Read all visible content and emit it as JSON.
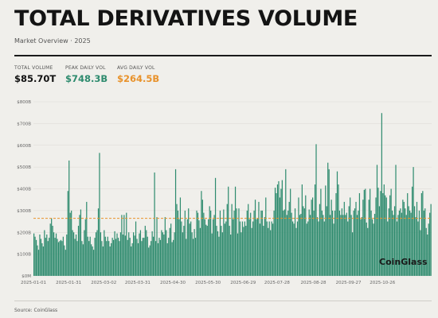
{
  "header": {
    "title": "TOTAL DERIVATIVES VOLUME",
    "subtitle": "Market Overview · 2025"
  },
  "stats": [
    {
      "label": "TOTAL VOLUME",
      "value": "$85.70T",
      "color": "#111111"
    },
    {
      "label": "PEAK DAILY VOL",
      "value": "$748.3B",
      "color": "#2e8b6e"
    },
    {
      "label": "AVG DAILY VOL",
      "value": "$264.5B",
      "color": "#e8922b"
    }
  ],
  "watermark": "CoinGlass",
  "source": "Source: CoinGlass",
  "colors": {
    "bar": "#2e8b6e",
    "average_line": "#e8922b",
    "grid": "#dcdad5",
    "axis_text": "#666666"
  },
  "chart_data": {
    "type": "bar",
    "title": "TOTAL DERIVATIVES VOLUME",
    "xlabel": "",
    "ylabel": "",
    "ylim": [
      0,
      800
    ],
    "y_ticks": [
      0,
      100,
      200,
      300,
      400,
      500,
      600,
      700,
      800
    ],
    "y_tick_labels": [
      "$0M",
      "$100B",
      "$200B",
      "$300B",
      "$400B",
      "$500B",
      "$600B",
      "$700B",
      "$800B"
    ],
    "x_tick_labels": [
      "2025-01-01",
      "2025-01-31",
      "2025-03-02",
      "2025-03-31",
      "2025-04-30",
      "2025-05-30",
      "2025-06-29",
      "2025-07-28",
      "2025-08-28",
      "2025-09-27",
      "2025-10-26"
    ],
    "x_tick_day_index": [
      0,
      30,
      60,
      89,
      119,
      149,
      179,
      208,
      239,
      269,
      298
    ],
    "average_line_value": 264.5,
    "grid": true,
    "unit": "B USD",
    "values": [
      195,
      180,
      165,
      140,
      120,
      190,
      170,
      150,
      135,
      210,
      175,
      190,
      160,
      175,
      240,
      265,
      230,
      200,
      175,
      195,
      170,
      155,
      160,
      165,
      160,
      180,
      140,
      120,
      190,
      390,
      530,
      290,
      300,
      210,
      200,
      170,
      190,
      160,
      230,
      280,
      305,
      160,
      145,
      210,
      260,
      340,
      180,
      160,
      180,
      145,
      135,
      120,
      175,
      200,
      210,
      310,
      565,
      200,
      160,
      135,
      210,
      180,
      160,
      180,
      160,
      135,
      150,
      175,
      165,
      205,
      170,
      195,
      175,
      160,
      200,
      280,
      190,
      280,
      185,
      290,
      165,
      200,
      175,
      135,
      150,
      200,
      185,
      250,
      170,
      150,
      195,
      210,
      160,
      175,
      175,
      230,
      210,
      180,
      130,
      140,
      160,
      205,
      180,
      475,
      160,
      270,
      150,
      175,
      165,
      210,
      200,
      190,
      270,
      210,
      150,
      175,
      220,
      240,
      155,
      165,
      200,
      490,
      330,
      300,
      260,
      360,
      250,
      200,
      230,
      300,
      170,
      260,
      310,
      240,
      250,
      200,
      170,
      215,
      175,
      300,
      290,
      255,
      220,
      390,
      350,
      290,
      260,
      235,
      230,
      260,
      320,
      300,
      195,
      260,
      280,
      450,
      230,
      205,
      180,
      300,
      230,
      200,
      305,
      240,
      250,
      330,
      410,
      230,
      190,
      330,
      260,
      300,
      410,
      310,
      195,
      310,
      250,
      200,
      250,
      225,
      250,
      230,
      300,
      330,
      260,
      290,
      220,
      250,
      300,
      350,
      260,
      265,
      340,
      240,
      300,
      300,
      230,
      270,
      360,
      250,
      220,
      250,
      210,
      250,
      240,
      300,
      405,
      380,
      420,
      435,
      360,
      400,
      440,
      300,
      305,
      490,
      280,
      300,
      340,
      400,
      290,
      250,
      240,
      310,
      220,
      250,
      360,
      280,
      285,
      420,
      320,
      310,
      370,
      240,
      250,
      305,
      280,
      350,
      360,
      300,
      420,
      605,
      270,
      250,
      330,
      400,
      300,
      280,
      250,
      415,
      320,
      520,
      490,
      280,
      350,
      300,
      240,
      300,
      380,
      480,
      420,
      300,
      280,
      310,
      280,
      340,
      280,
      290,
      250,
      320,
      360,
      280,
      200,
      300,
      310,
      340,
      280,
      300,
      380,
      260,
      270,
      350,
      395,
      400,
      245,
      220,
      350,
      400,
      300,
      260,
      240,
      285,
      360,
      510,
      405,
      320,
      390,
      748,
      380,
      420,
      370,
      360,
      250,
      310,
      370,
      400,
      300,
      280,
      320,
      510,
      250,
      280,
      300,
      310,
      290,
      350,
      340,
      310,
      280,
      380,
      320,
      300,
      290,
      410,
      500,
      320,
      270,
      340,
      250,
      300,
      210,
      380,
      390,
      300,
      310,
      220,
      190,
      240,
      290,
      330
    ]
  }
}
